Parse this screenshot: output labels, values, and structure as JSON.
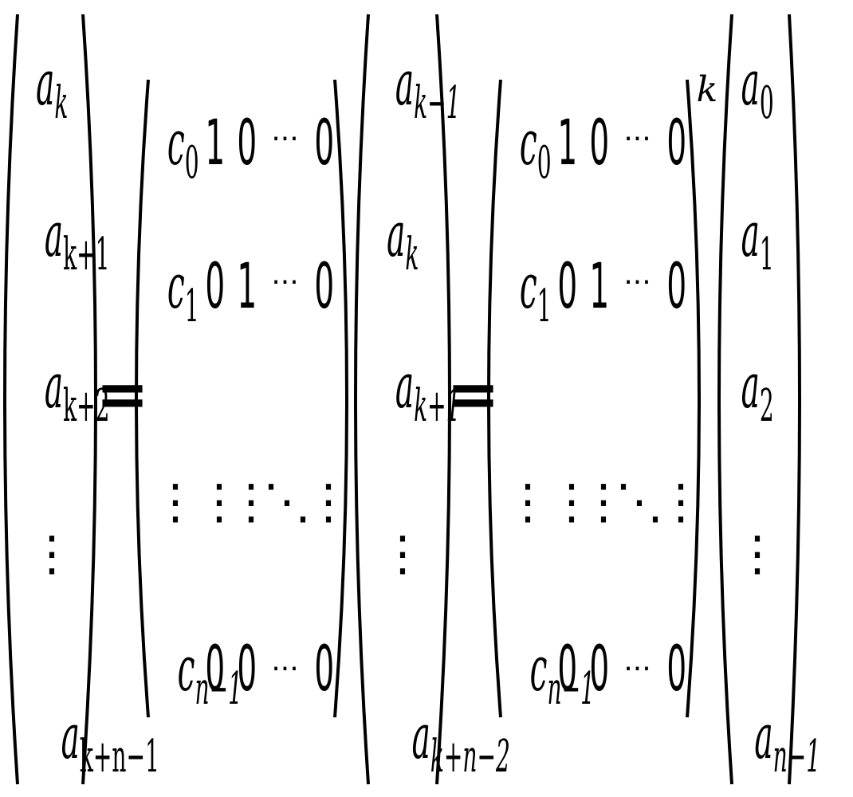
{
  "lhs_vector": [
    "a",
    "a",
    "a",
    "⋮",
    "a"
  ],
  "lhs_sub": [
    "k",
    "k+1",
    "k+2",
    "",
    "k+n−1"
  ],
  "equals_sign": "=",
  "matrix": {
    "row0": [
      "c",
      "1",
      "0",
      "···",
      "0"
    ],
    "row1": [
      "c",
      "0",
      "1",
      "···",
      "0"
    ],
    "row2": [
      "⋮",
      "⋮",
      "⋮",
      "⋱",
      "⋮"
    ],
    "row3": [
      "c",
      "0",
      "0",
      "···",
      "0"
    ],
    "col0_sub": [
      "0",
      "1",
      "",
      "n−1"
    ]
  },
  "middle_vector": [
    "a",
    "a",
    "a",
    "⋮",
    "a"
  ],
  "middle_sub": [
    "k−1",
    "k",
    "k+1",
    "",
    "k+n−2"
  ],
  "power": "k",
  "rhs_vector": [
    "a",
    "a",
    "a",
    "⋮",
    "a"
  ],
  "rhs_sub": [
    "0",
    "1",
    "2",
    "",
    "n−1"
  ]
}
